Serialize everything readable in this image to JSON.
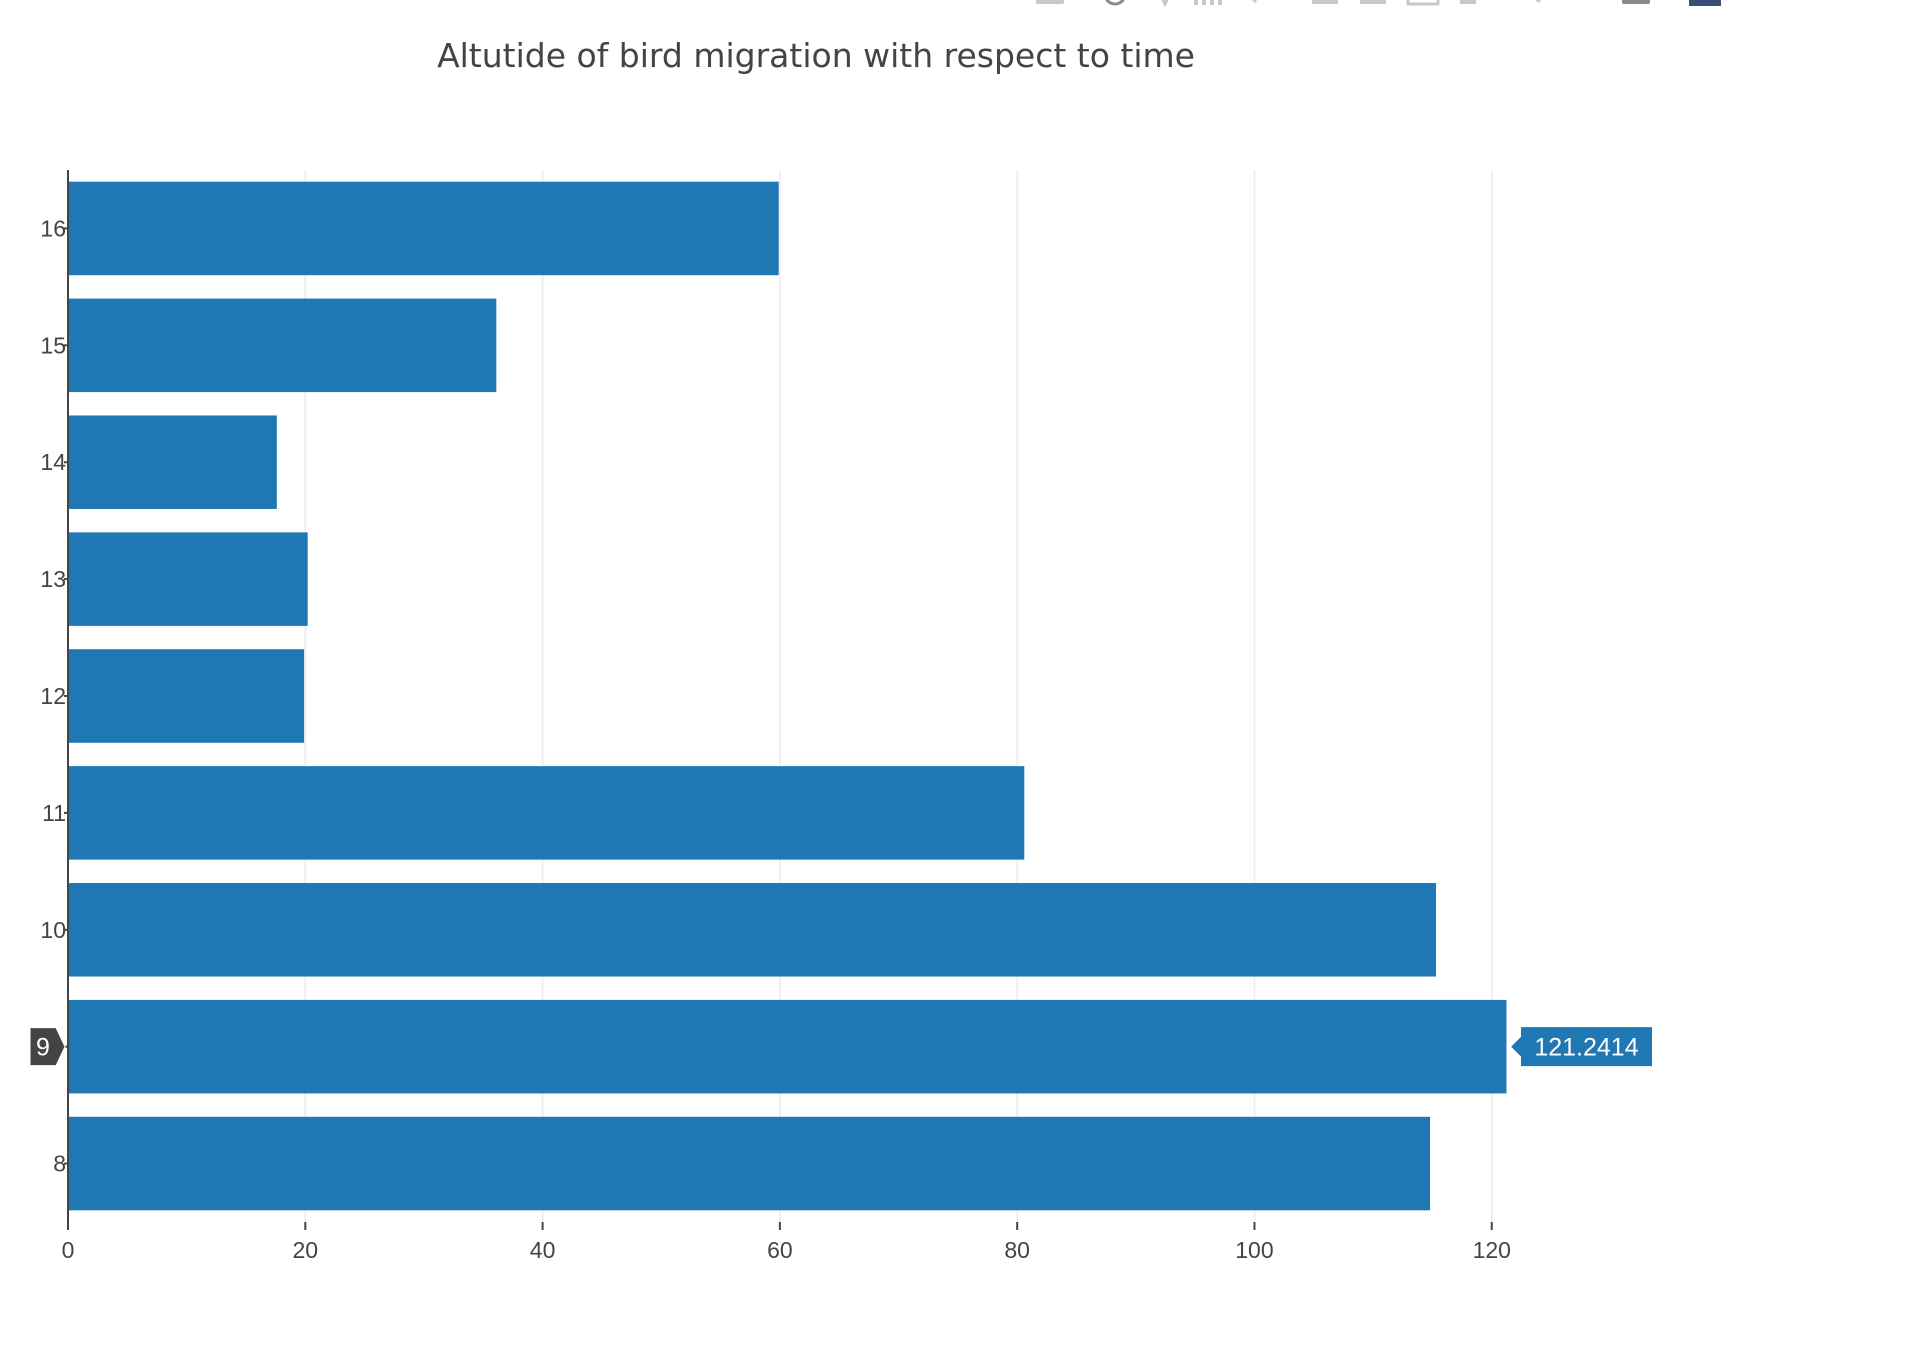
{
  "chart_data": {
    "type": "bar",
    "orientation": "horizontal",
    "title": "Altutide of bird migration with respect to time",
    "xlabel": "",
    "ylabel": "",
    "categories": [
      "8",
      "9",
      "10",
      "11",
      "12",
      "13",
      "14",
      "15",
      "16"
    ],
    "values": [
      114.8,
      121.2414,
      115.3,
      80.6,
      19.9,
      20.2,
      17.6,
      36.1,
      59.9
    ],
    "xlim": [
      0,
      133
    ],
    "xticks": [
      "0",
      "20",
      "40",
      "60",
      "80",
      "100",
      "120"
    ],
    "xtick_values": [
      0,
      20,
      40,
      60,
      80,
      100,
      120
    ],
    "grid": true,
    "bar_color": "#1f77b4",
    "hover": {
      "category": "9",
      "value_label": "121.2414"
    }
  },
  "modebar": {
    "icons": [
      "camera-icon",
      "zoom-icon",
      "pan-icon",
      "lasso-select-icon",
      "box-select-icon",
      "zoom-in-icon",
      "zoom-out-icon",
      "autoscale-icon",
      "reset-axes-icon",
      "spike-lines-icon",
      "hover-closest-icon",
      "hover-compare-icon",
      "plotly-logo-icon"
    ]
  }
}
